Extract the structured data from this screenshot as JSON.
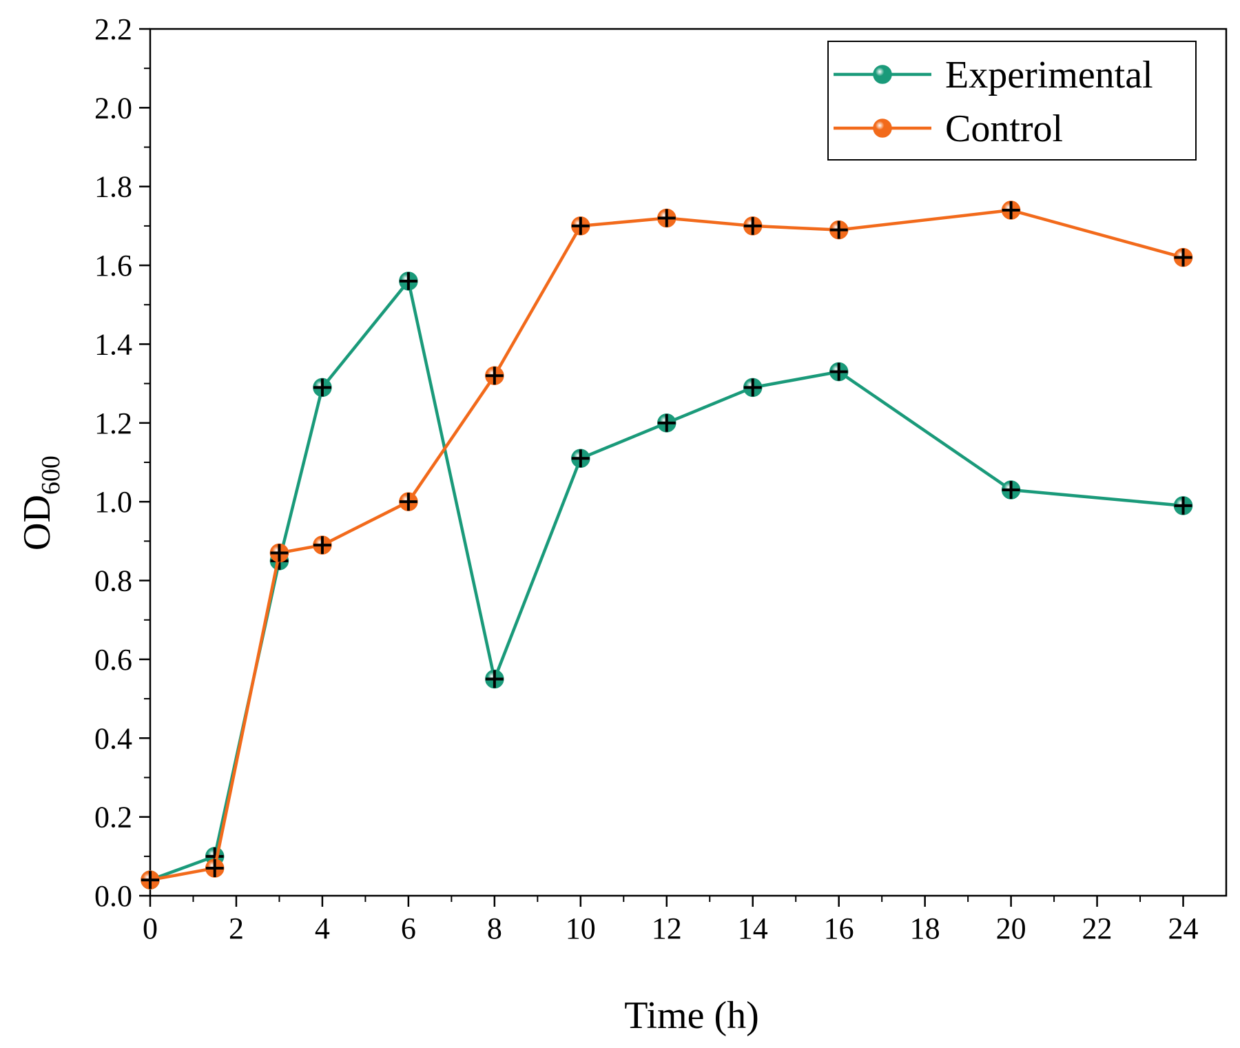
{
  "chart_data": {
    "type": "line",
    "title": "",
    "xlabel": "Time (h)",
    "ylabel_main": "OD",
    "ylabel_sub": "600",
    "xlim": [
      0,
      25
    ],
    "ylim": [
      0,
      2.2
    ],
    "xticks": [
      "0",
      "2",
      "4",
      "6",
      "8",
      "10",
      "12",
      "14",
      "16",
      "18",
      "20",
      "22",
      "24"
    ],
    "yticks": [
      "0.0",
      "0.2",
      "0.4",
      "0.6",
      "0.8",
      "1.0",
      "1.2",
      "1.4",
      "1.6",
      "1.8",
      "2.0",
      "2.2"
    ],
    "grid": false,
    "legend_position": "top-right",
    "series": [
      {
        "name": "Experimental",
        "color": "#1a9a7a",
        "x": [
          0,
          1.5,
          3,
          4,
          6,
          8,
          10,
          12,
          14,
          16,
          20,
          24
        ],
        "y": [
          0.04,
          0.1,
          0.85,
          1.29,
          1.56,
          0.55,
          1.11,
          1.2,
          1.29,
          1.33,
          1.03,
          0.99
        ]
      },
      {
        "name": "Control",
        "color": "#f26a1b",
        "x": [
          0,
          1.5,
          3,
          4,
          6,
          8,
          10,
          12,
          14,
          16,
          20,
          24
        ],
        "y": [
          0.04,
          0.07,
          0.87,
          0.89,
          1.0,
          1.32,
          1.7,
          1.72,
          1.7,
          1.69,
          1.74,
          1.62
        ]
      }
    ]
  }
}
